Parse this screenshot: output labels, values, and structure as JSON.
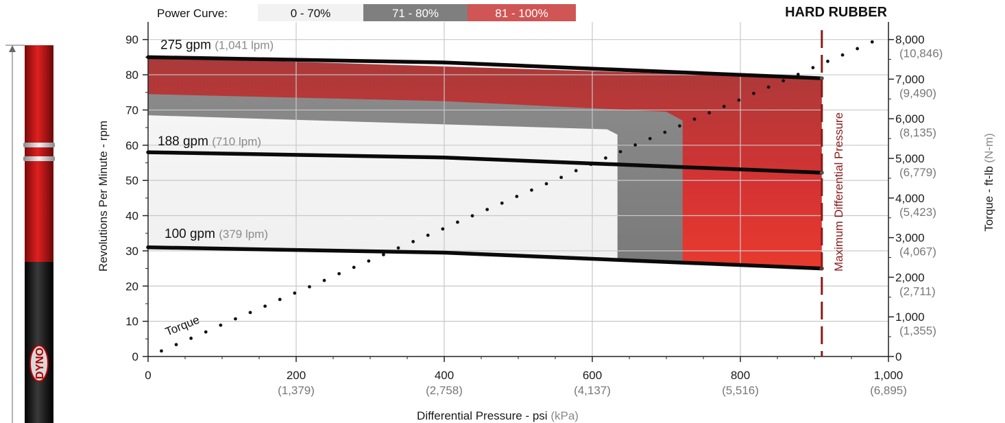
{
  "chart_data": {
    "type": "line",
    "title": "HARD RUBBER",
    "legend": {
      "label": "Power Curve:",
      "placement": "top",
      "entries": [
        {
          "label": "0 - 70%",
          "color": "#f2f2f2"
        },
        {
          "label": "71 - 80%",
          "color": "#7f7f7f"
        },
        {
          "label": "81 - 100%",
          "color": "#d05555"
        }
      ]
    },
    "xaxis": {
      "label": "Differential Pressure - psi",
      "unit_label": "(kPa)",
      "range": [
        0,
        1000
      ],
      "ticks": [
        {
          "value": 0,
          "label": "0",
          "sub": ""
        },
        {
          "value": 200,
          "label": "200",
          "sub": "(1,379)"
        },
        {
          "value": 400,
          "label": "400",
          "sub": "(2,758)"
        },
        {
          "value": 600,
          "label": "600",
          "sub": "(4,137)"
        },
        {
          "value": 800,
          "label": "800",
          "sub": "(5,516)"
        },
        {
          "value": 1000,
          "label": "1,000",
          "sub": "(6,895)"
        }
      ]
    },
    "yaxis_left": {
      "label": "Revolutions Per Minute - rpm",
      "range": [
        0,
        95
      ],
      "ticks": [
        "0",
        "10",
        "20",
        "30",
        "40",
        "50",
        "60",
        "70",
        "80",
        "90"
      ]
    },
    "yaxis_right": {
      "label": "Torque - ft-lb",
      "unit_label": "(N-m)",
      "range": [
        0,
        8444
      ],
      "ticks": [
        {
          "value": 0,
          "label": "0",
          "sub": ""
        },
        {
          "value": 1000,
          "label": "1,000",
          "sub": "(1,355)"
        },
        {
          "value": 2000,
          "label": "2,000",
          "sub": "(2,711)"
        },
        {
          "value": 3000,
          "label": "3,000",
          "sub": "(4,067)"
        },
        {
          "value": 4000,
          "label": "4,000",
          "sub": "(5,423)"
        },
        {
          "value": 5000,
          "label": "5,000",
          "sub": "(6,779)"
        },
        {
          "value": 6000,
          "label": "6,000",
          "sub": "(8,135)"
        },
        {
          "value": 7000,
          "label": "7,000",
          "sub": "(9,490)"
        },
        {
          "value": 8000,
          "label": "8,000",
          "sub": "(10,846)"
        }
      ]
    },
    "grid": true,
    "series": [
      {
        "name": "275 gpm",
        "sub": "(1,041 lpm)",
        "x": [
          0,
          400,
          910
        ],
        "y": [
          85,
          83.5,
          79
        ]
      },
      {
        "name": "188 gpm",
        "sub": "(710 lpm)",
        "x": [
          0,
          400,
          910
        ],
        "y": [
          58,
          56.5,
          52.2
        ]
      },
      {
        "name": "100 gpm",
        "sub": "(379 lpm)",
        "x": [
          0,
          400,
          910
        ],
        "y": [
          31,
          29.5,
          25
        ]
      }
    ],
    "torque_series": {
      "name": "Torque",
      "x": [
        18,
        38,
        58,
        78,
        98,
        118,
        138,
        158,
        178,
        198,
        218,
        238,
        258,
        278,
        298,
        318,
        338,
        358,
        378,
        398,
        418,
        438,
        458,
        478,
        498,
        518,
        538,
        558,
        578,
        598,
        618,
        638,
        658,
        678,
        698,
        718,
        738,
        758,
        778,
        798,
        818,
        838,
        858,
        878,
        898,
        918,
        938,
        958,
        978
      ],
      "y": [
        140,
        300,
        460,
        620,
        790,
        950,
        1110,
        1270,
        1440,
        1600,
        1760,
        1920,
        2090,
        2250,
        2410,
        2570,
        2740,
        2900,
        3060,
        3220,
        3390,
        3550,
        3710,
        3870,
        4040,
        4200,
        4360,
        4520,
        4690,
        4850,
        5010,
        5170,
        5340,
        5500,
        5660,
        5820,
        5990,
        6150,
        6310,
        6470,
        6640,
        6800,
        6960,
        7120,
        7290,
        7450,
        7610,
        7770,
        7940
      ]
    },
    "regions": {
      "light": {
        "top": [
          [
            0,
            68.5
          ],
          [
            620,
            64.5
          ],
          [
            634,
            63
          ]
        ],
        "right_x": 634,
        "bottom_y_at_right": 28.8
      },
      "gray": {
        "top": [
          [
            0,
            74.5
          ],
          [
            400,
            72.5
          ],
          [
            700,
            69.5
          ],
          [
            722,
            67
          ]
        ],
        "right_x": 722,
        "bottom_y_at_right": 28.2
      },
      "red": {
        "top": [
          [
            0,
            85
          ],
          [
            910,
            79
          ]
        ],
        "right_x": 910,
        "bottom_y_at_right": 25.5
      }
    },
    "max_pressure": {
      "label": "Maximum Differential Pressure",
      "x": 910
    }
  }
}
